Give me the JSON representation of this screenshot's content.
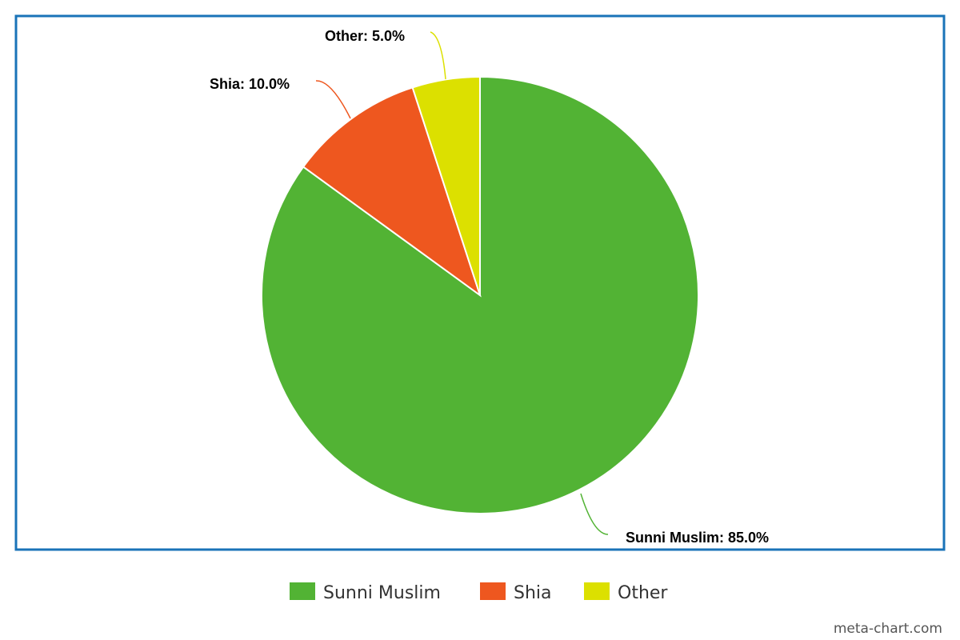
{
  "chart_data": {
    "type": "pie",
    "slices": [
      {
        "name": "Sunni Muslim",
        "value": 85.0,
        "label": "Sunni Muslim: 85.0%",
        "color": "#52b334"
      },
      {
        "name": "Shia",
        "value": 10.0,
        "label": "Shia: 10.0%",
        "color": "#ee571f"
      },
      {
        "name": "Other",
        "value": 5.0,
        "label": "Other: 5.0%",
        "color": "#dce000"
      }
    ],
    "legend": {
      "placement": "bottom",
      "entries": [
        "Sunni Muslim",
        "Shia",
        "Other"
      ]
    },
    "frame_color": "#1a73b8"
  },
  "watermark": "meta-chart.com"
}
